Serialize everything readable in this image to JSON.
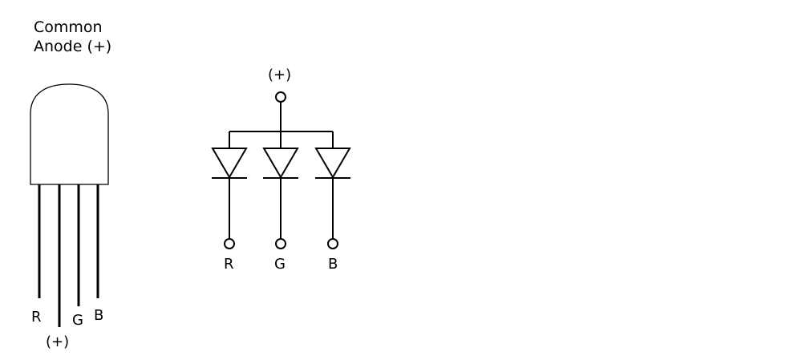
{
  "led": {
    "title_line1": "Common",
    "title_line2": "Anode (+)",
    "pin_labels": {
      "r": "R",
      "common": "(+)",
      "g": "G",
      "b": "B"
    }
  },
  "schematic": {
    "supply_label": "(+)",
    "outputs": {
      "r": "R",
      "g": "G",
      "b": "B"
    }
  }
}
